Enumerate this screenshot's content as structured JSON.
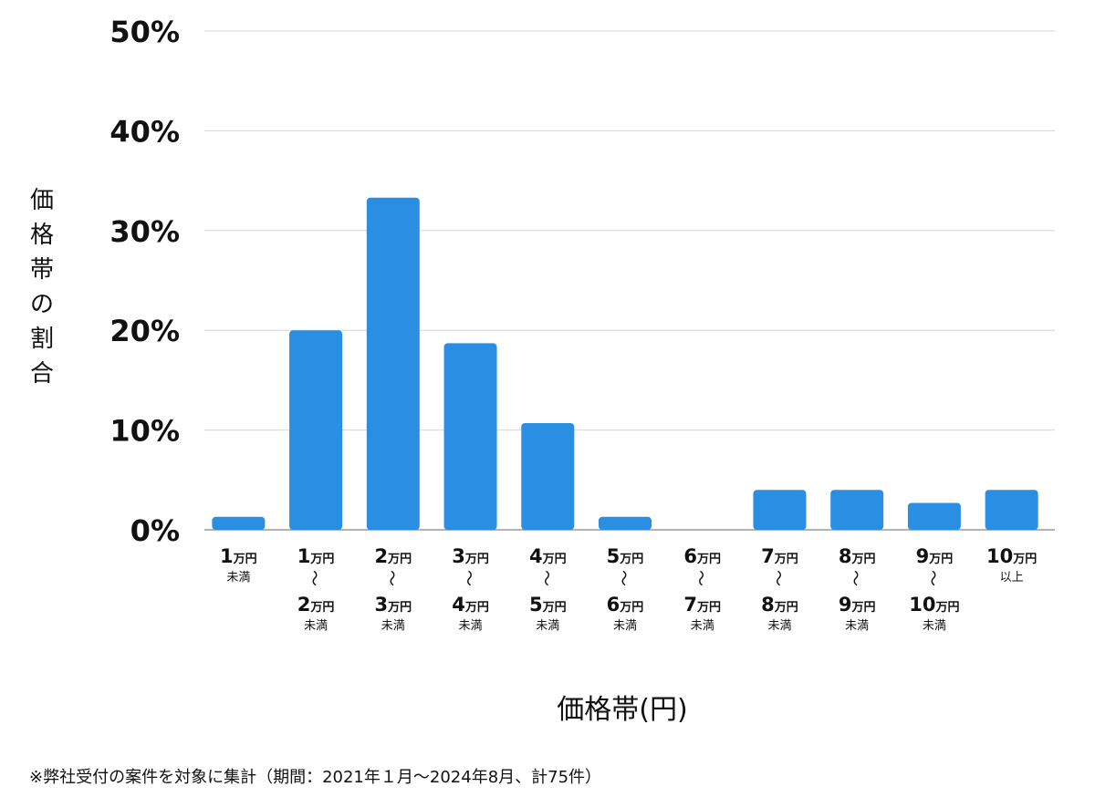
{
  "chart_data": {
    "type": "bar",
    "title": "",
    "ylabel": "価格帯の割合",
    "xlabel": "価格帯(円)",
    "ylim": [
      0,
      50
    ],
    "yticks": [
      "0%",
      "10%",
      "20%",
      "30%",
      "40%",
      "50%"
    ],
    "grid": true,
    "bar_color": "#2a8fe3",
    "unit_label": "万円",
    "tilde": "〜",
    "categories": [
      {
        "from": "1",
        "to": "",
        "note": "未満"
      },
      {
        "from": "1",
        "to": "2",
        "note": "未満"
      },
      {
        "from": "2",
        "to": "3",
        "note": "未満"
      },
      {
        "from": "3",
        "to": "4",
        "note": "未満"
      },
      {
        "from": "4",
        "to": "5",
        "note": "未満"
      },
      {
        "from": "5",
        "to": "6",
        "note": "未満"
      },
      {
        "from": "6",
        "to": "7",
        "note": "未満"
      },
      {
        "from": "7",
        "to": "8",
        "note": "未満"
      },
      {
        "from": "8",
        "to": "9",
        "note": "未満"
      },
      {
        "from": "9",
        "to": "10",
        "note": "未満"
      },
      {
        "from": "10",
        "to": "",
        "note": "以上"
      }
    ],
    "values": [
      1.3,
      20.0,
      33.3,
      18.7,
      10.7,
      1.3,
      0,
      4.0,
      4.0,
      2.7,
      4.0
    ]
  },
  "footnote": "※弊社受付の案件を対象に集計（期間：2021年１月〜2024年8月、計75件）"
}
